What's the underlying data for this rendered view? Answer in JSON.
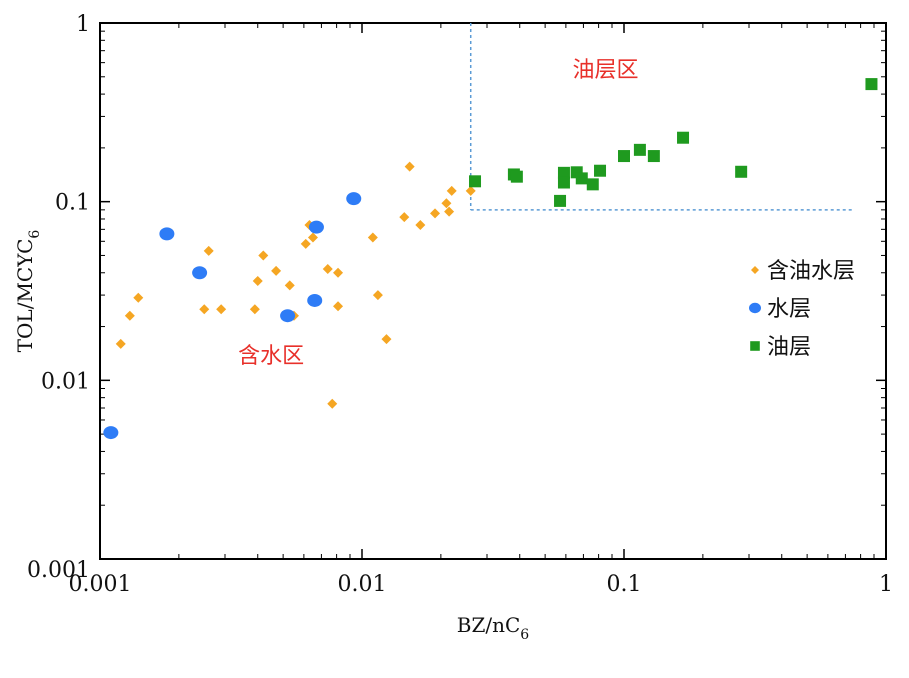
{
  "chart_data": {
    "type": "scatter",
    "x_scale": "log",
    "y_scale": "log",
    "xlim": [
      0.001,
      1
    ],
    "ylim": [
      0.001,
      1
    ],
    "x_ticks": [
      "0.001",
      "0.01",
      "0.1",
      "1"
    ],
    "y_ticks": [
      "0.001",
      "0.01",
      "0.1",
      "1"
    ],
    "xlabel": "BZ/nC",
    "xlabel_sub": "6",
    "ylabel": "TOL/MCYC",
    "ylabel_sub": "6",
    "grid": false,
    "legend_position": "right",
    "thresholds": {
      "x": 0.026,
      "y": 0.09,
      "x_end": 0.75,
      "color": "#5b9bd5"
    },
    "annotations": [
      {
        "text": "油层区",
        "x": 0.085,
        "y": 0.5,
        "color": "#e8302a"
      },
      {
        "text": "含水区",
        "x": 0.0045,
        "y": 0.0125,
        "color": "#e8302a"
      }
    ],
    "series": [
      {
        "name": "含油水层",
        "marker": "diamond",
        "color": "#f5a623",
        "points": [
          [
            0.0012,
            0.016
          ],
          [
            0.0013,
            0.023
          ],
          [
            0.0014,
            0.029
          ],
          [
            0.0025,
            0.025
          ],
          [
            0.0026,
            0.053
          ],
          [
            0.0029,
            0.025
          ],
          [
            0.0039,
            0.025
          ],
          [
            0.004,
            0.036
          ],
          [
            0.0042,
            0.05
          ],
          [
            0.0047,
            0.041
          ],
          [
            0.0053,
            0.034
          ],
          [
            0.0055,
            0.023
          ],
          [
            0.0061,
            0.058
          ],
          [
            0.0063,
            0.074
          ],
          [
            0.0065,
            0.063
          ],
          [
            0.0074,
            0.042
          ],
          [
            0.0077,
            0.0074
          ],
          [
            0.0081,
            0.04
          ],
          [
            0.0081,
            0.026
          ],
          [
            0.011,
            0.063
          ],
          [
            0.0115,
            0.03
          ],
          [
            0.0124,
            0.017
          ],
          [
            0.0145,
            0.082
          ],
          [
            0.0152,
            0.157
          ],
          [
            0.0167,
            0.074
          ],
          [
            0.019,
            0.086
          ],
          [
            0.021,
            0.098
          ],
          [
            0.0215,
            0.088
          ],
          [
            0.022,
            0.115
          ],
          [
            0.026,
            0.115
          ]
        ]
      },
      {
        "name": "水层",
        "marker": "circle",
        "color": "#2e7cf6",
        "points": [
          [
            0.0011,
            0.0051
          ],
          [
            0.0018,
            0.066
          ],
          [
            0.0024,
            0.04
          ],
          [
            0.0052,
            0.023
          ],
          [
            0.0066,
            0.028
          ],
          [
            0.0067,
            0.072
          ],
          [
            0.0093,
            0.104
          ]
        ]
      },
      {
        "name": "油层",
        "marker": "square",
        "color": "#1f9a1f",
        "points": [
          [
            0.027,
            0.13
          ],
          [
            0.038,
            0.142
          ],
          [
            0.039,
            0.138
          ],
          [
            0.057,
            0.101
          ],
          [
            0.059,
            0.145
          ],
          [
            0.059,
            0.128
          ],
          [
            0.066,
            0.146
          ],
          [
            0.069,
            0.135
          ],
          [
            0.076,
            0.125
          ],
          [
            0.081,
            0.149
          ],
          [
            0.1,
            0.18
          ],
          [
            0.115,
            0.195
          ],
          [
            0.13,
            0.18
          ],
          [
            0.168,
            0.228
          ],
          [
            0.28,
            0.147
          ],
          [
            0.88,
            0.455
          ]
        ]
      }
    ]
  }
}
